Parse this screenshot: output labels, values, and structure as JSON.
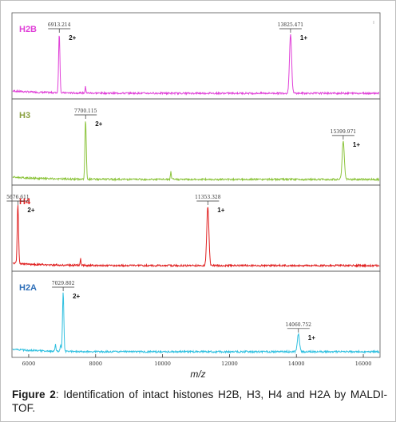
{
  "chart_data": {
    "type": "line",
    "xlabel": "m/z",
    "xlim": [
      5500,
      16500
    ],
    "x_ticks": [
      "6000",
      "8000",
      "10000",
      "12000",
      "14000",
      "16000"
    ],
    "x_tick_values": [
      6000,
      8000,
      10000,
      12000,
      14000,
      16000
    ],
    "panels": [
      {
        "name": "H2B",
        "color": "#e040d8",
        "label_color": "#e040d8",
        "peaks": [
          {
            "mz": 6913.214,
            "label": "6913.214",
            "charge": "2+"
          },
          {
            "mz": 13825.471,
            "label": "13825.471",
            "charge": "1+"
          }
        ],
        "minor_peaks": [
          7700
        ]
      },
      {
        "name": "H3",
        "color": "#8cc43c",
        "label_color": "#8aa040",
        "peaks": [
          {
            "mz": 7700.115,
            "label": "7700.115",
            "charge": "2+"
          },
          {
            "mz": 15399.971,
            "label": "15399.971",
            "charge": "1+"
          }
        ],
        "minor_peaks": [
          10250
        ]
      },
      {
        "name": "H4",
        "color": "#e02020",
        "label_color": "#e02020",
        "peaks": [
          {
            "mz": 5676.611,
            "label": "5676.611",
            "charge": "2+"
          },
          {
            "mz": 11353.328,
            "label": "11353.328",
            "charge": "1+"
          }
        ],
        "minor_peaks": [
          7550
        ]
      },
      {
        "name": "H2A",
        "color": "#30c0e0",
        "label_color": "#2f6fb8",
        "peaks": [
          {
            "mz": 7029.802,
            "label": "7029.802",
            "charge": "2+"
          },
          {
            "mz": 14060.752,
            "label": "14060.752",
            "charge": "1+"
          }
        ],
        "minor_peaks": [
          6800,
          6950
        ]
      }
    ]
  },
  "caption": {
    "prefix": "Figure 2",
    "text": ": Identification of intact histones H2B, H3, H4 and H2A by MALDI-TOF."
  }
}
